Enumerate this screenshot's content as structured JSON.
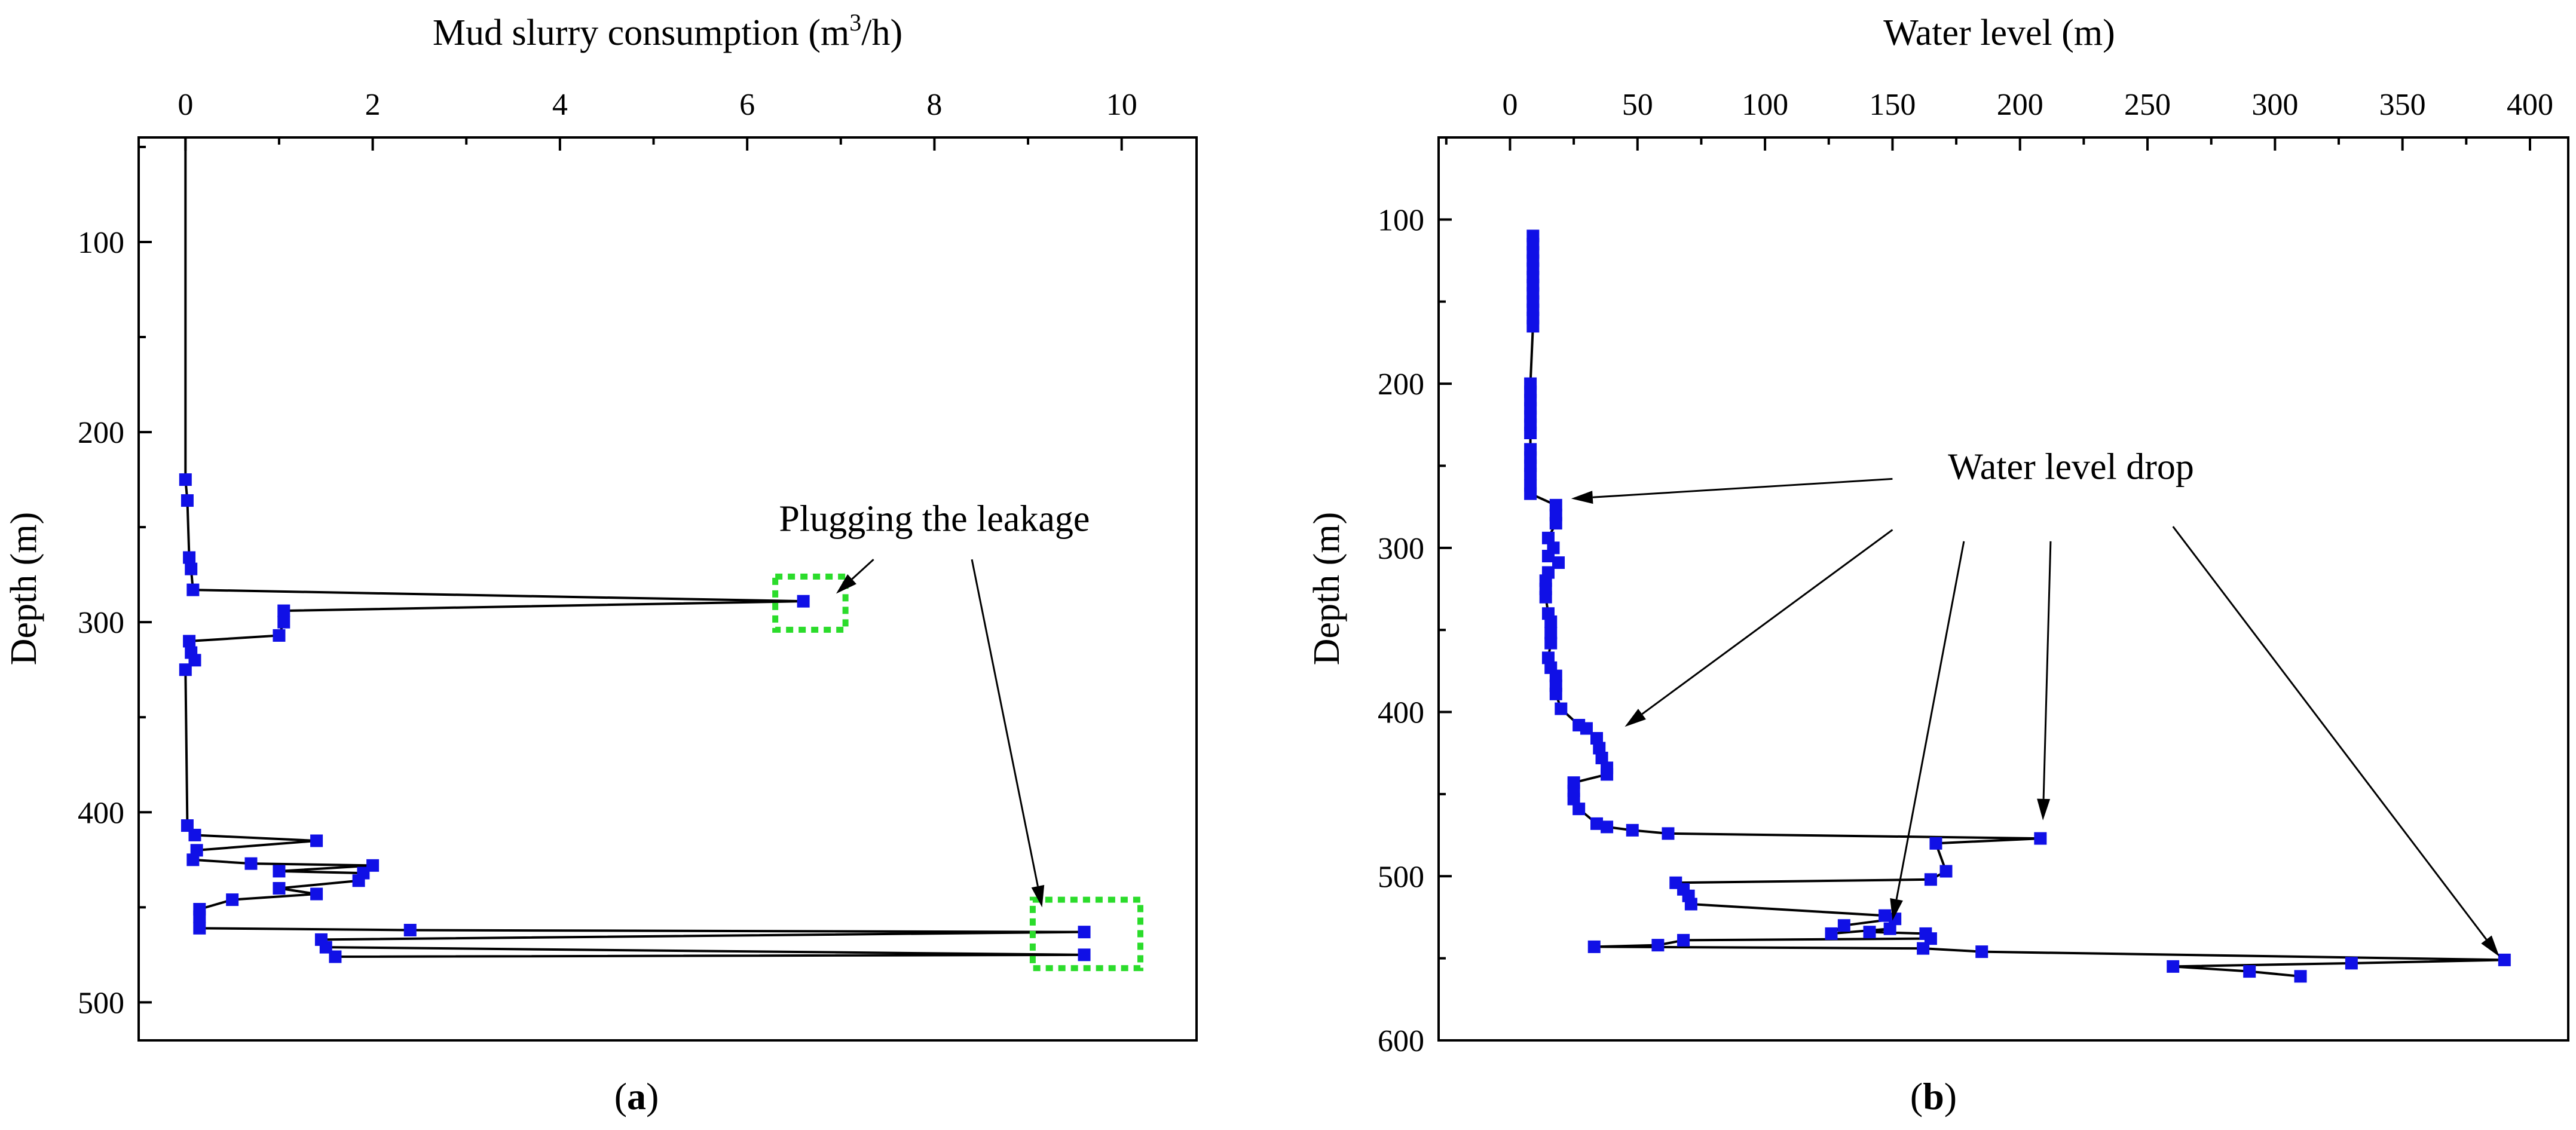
{
  "chart_data": [
    {
      "type": "scatter",
      "panel_label": "a",
      "title": "",
      "xlabel": "Mud slurry consumption (m³/h)",
      "xlabel_main": "Mud slurry consumption (m",
      "xlabel_sup": "3",
      "xlabel_tail": "/h)",
      "ylabel": "Depth (m)",
      "xlim": [
        -0.5,
        10.8
      ],
      "ylim": [
        520,
        45
      ],
      "x_ticks": [
        0,
        2,
        4,
        6,
        8,
        10
      ],
      "y_ticks": [
        100,
        200,
        300,
        400,
        500
      ],
      "x_axis_position": "top",
      "y_axis_inverted": true,
      "grid": false,
      "line_from_surface": [
        [
          0.0,
          45
        ],
        [
          0.0,
          225
        ]
      ],
      "series": [
        {
          "name": "Mud slurry consumption",
          "points": [
            [
              0.0,
              225
            ],
            [
              0.02,
              236
            ],
            [
              0.04,
              266
            ],
            [
              0.06,
              272
            ],
            [
              0.08,
              283
            ],
            [
              6.6,
              289
            ],
            [
              1.05,
              294
            ],
            [
              1.05,
              300
            ],
            [
              1.0,
              307
            ],
            [
              0.04,
              310
            ],
            [
              0.06,
              316
            ],
            [
              0.1,
              320
            ],
            [
              0.0,
              325
            ],
            [
              0.02,
              407
            ],
            [
              0.1,
              412
            ],
            [
              1.4,
              415
            ],
            [
              0.12,
              420
            ],
            [
              0.08,
              425
            ],
            [
              0.7,
              427
            ],
            [
              2.0,
              428
            ],
            [
              1.0,
              431
            ],
            [
              1.9,
              432
            ],
            [
              1.85,
              436
            ],
            [
              1.0,
              440
            ],
            [
              1.4,
              443
            ],
            [
              0.5,
              446
            ],
            [
              0.15,
              451
            ],
            [
              0.15,
              455
            ],
            [
              0.15,
              461
            ],
            [
              2.4,
              462
            ],
            [
              9.6,
              463
            ],
            [
              1.45,
              467
            ],
            [
              1.5,
              471
            ],
            [
              9.6,
              475
            ],
            [
              1.6,
              476
            ]
          ]
        }
      ],
      "highlights": [
        {
          "x0": 6.3,
          "x1": 7.05,
          "y0": 276,
          "y1": 304
        },
        {
          "x0": 9.05,
          "x1": 10.2,
          "y0": 446,
          "y1": 482
        }
      ],
      "annotation": {
        "text": "Plugging the leakage",
        "label_anchor": [
          8.0,
          252
        ],
        "arrows": [
          {
            "from": [
              7.35,
              267
            ],
            "to": [
              6.95,
              285
            ]
          },
          {
            "from": [
              8.4,
              267
            ],
            "to": [
              9.15,
              450
            ]
          }
        ]
      }
    },
    {
      "type": "scatter",
      "panel_label": "b",
      "title": "",
      "xlabel": "Water level (m)",
      "ylabel": "Depth (m)",
      "xlim": [
        -28,
        415
      ],
      "ylim": [
        600,
        50
      ],
      "x_ticks": [
        0,
        50,
        100,
        150,
        200,
        250,
        300,
        350,
        400
      ],
      "y_ticks": [
        100,
        200,
        300,
        400,
        500,
        600
      ],
      "x_axis_position": "top",
      "y_axis_inverted": true,
      "grid": false,
      "series": [
        {
          "name": "Water level",
          "points": [
            [
              9,
              110
            ],
            [
              9,
              115
            ],
            [
              9,
              120
            ],
            [
              9,
              125
            ],
            [
              9,
              130
            ],
            [
              9,
              135
            ],
            [
              9,
              140
            ],
            [
              9,
              145
            ],
            [
              9,
              150
            ],
            [
              9,
              155
            ],
            [
              9,
              160
            ],
            [
              9,
              165
            ],
            [
              8,
              200
            ],
            [
              8,
              205
            ],
            [
              8,
              210
            ],
            [
              8,
              215
            ],
            [
              8,
              220
            ],
            [
              8,
              225
            ],
            [
              8,
              230
            ],
            [
              8,
              240
            ],
            [
              8,
              245
            ],
            [
              8,
              250
            ],
            [
              8,
              255
            ],
            [
              8,
              262
            ],
            [
              8,
              267
            ],
            [
              18,
              274
            ],
            [
              18,
              280
            ],
            [
              18,
              285
            ],
            [
              15,
              294
            ],
            [
              17,
              300
            ],
            [
              15,
              305
            ],
            [
              19,
              309
            ],
            [
              15,
              315
            ],
            [
              14,
              320
            ],
            [
              14,
              325
            ],
            [
              14,
              330
            ],
            [
              15,
              340
            ],
            [
              16,
              345
            ],
            [
              16,
              352
            ],
            [
              16,
              358
            ],
            [
              15,
              367
            ],
            [
              16,
              373
            ],
            [
              18,
              378
            ],
            [
              18,
              384
            ],
            [
              18,
              389
            ],
            [
              20,
              398
            ],
            [
              27,
              408
            ],
            [
              30,
              410
            ],
            [
              34,
              416
            ],
            [
              35,
              422
            ],
            [
              36,
              428
            ],
            [
              38,
              434
            ],
            [
              38,
              438
            ],
            [
              25,
              443
            ],
            [
              25,
              448
            ],
            [
              25,
              453
            ],
            [
              27,
              459
            ],
            [
              34,
              468
            ],
            [
              38,
              470
            ],
            [
              48,
              472
            ],
            [
              62,
              474
            ],
            [
              208,
              477
            ],
            [
              167,
              480
            ],
            [
              171,
              497
            ],
            [
              165,
              502
            ],
            [
              65,
              504
            ],
            [
              68,
              508
            ],
            [
              70,
              512
            ],
            [
              71,
              517
            ],
            [
              147,
              524
            ],
            [
              151,
              526
            ],
            [
              131,
              530
            ],
            [
              126,
              535
            ],
            [
              149,
              532
            ],
            [
              141,
              534
            ],
            [
              163,
              535
            ],
            [
              165,
              538
            ],
            [
              68,
              539
            ],
            [
              58,
              542
            ],
            [
              33,
              543
            ],
            [
              162,
              544
            ],
            [
              185,
              546
            ],
            [
              390,
              551
            ],
            [
              330,
              553
            ],
            [
              260,
              555
            ],
            [
              290,
              558
            ],
            [
              310,
              561
            ]
          ]
        }
      ],
      "annotation": {
        "text": "Water level drop",
        "label_anchor": [
          220,
          258
        ],
        "arrows": [
          {
            "from": [
              150,
              258
            ],
            "to": [
              24,
              270
            ]
          },
          {
            "from": [
              150,
              289
            ],
            "to": [
              45,
              409
            ]
          },
          {
            "from": [
              178,
              296
            ],
            "to": [
              150,
              527
            ]
          },
          {
            "from": [
              212,
              296
            ],
            "to": [
              209,
              466
            ]
          },
          {
            "from": [
              260,
              287
            ],
            "to": [
              388,
              549
            ]
          }
        ]
      }
    }
  ]
}
